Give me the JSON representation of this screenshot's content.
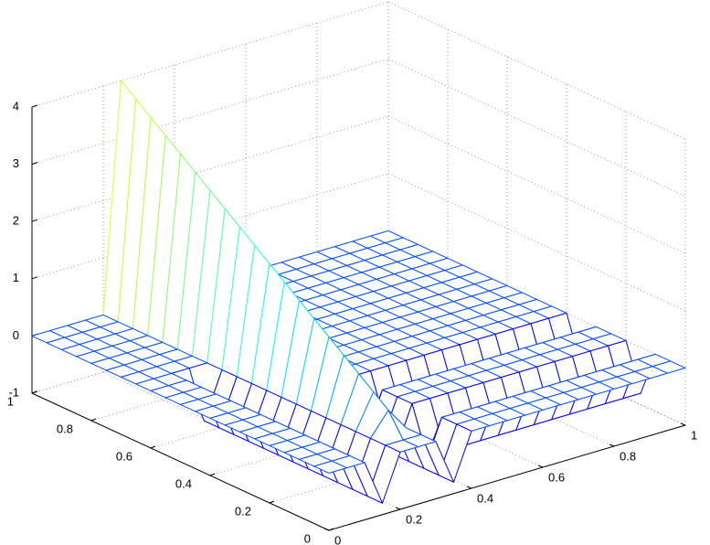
{
  "chart_data": {
    "type": "mesh",
    "x": [
      0,
      0.05,
      0.1,
      0.15,
      0.2,
      0.25,
      0.3,
      0.35,
      0.4,
      0.45,
      0.5,
      0.55,
      0.6,
      0.65,
      0.7,
      0.75,
      0.8,
      0.85,
      0.9,
      0.95,
      1
    ],
    "y": [
      0,
      0.05,
      0.1,
      0.15,
      0.2,
      0.25,
      0.3,
      0.35,
      0.4,
      0.45,
      0.5,
      0.55,
      0.6,
      0.65,
      0.7,
      0.75,
      0.8,
      0.85,
      0.9,
      0.95,
      1
    ],
    "z": [
      [
        0,
        0,
        0,
        -0.8,
        0,
        0,
        0,
        -0.8,
        0,
        0,
        0,
        0,
        0,
        0,
        0,
        0,
        0,
        0,
        0,
        0,
        0
      ],
      [
        0,
        0,
        0,
        -0.8,
        0,
        0,
        0,
        -0.8,
        0,
        0,
        0,
        0,
        0,
        0,
        0,
        0,
        0,
        0,
        0,
        0,
        0
      ],
      [
        0,
        0,
        0,
        -0.8,
        0,
        0.4,
        0,
        -0.8,
        0,
        0,
        0,
        0,
        0,
        0,
        0,
        0,
        0,
        0,
        0,
        0,
        0
      ],
      [
        0,
        0,
        0,
        -0.8,
        0,
        0.6,
        0,
        -0.8,
        -0.8,
        -0.8,
        -0.8,
        -0.8,
        -0.8,
        -0.8,
        -0.8,
        -0.8,
        -0.8,
        -0.8,
        -0.8,
        -0.8,
        -0.8
      ],
      [
        0,
        0,
        0,
        -0.8,
        0,
        0.8,
        0,
        -0.8,
        0,
        0,
        0,
        0,
        0,
        0,
        0,
        0,
        0,
        0,
        0,
        0,
        0
      ],
      [
        0,
        0,
        0,
        -0.8,
        0,
        1,
        0,
        -0.8,
        0,
        0,
        0,
        0,
        0,
        0,
        0,
        0,
        0,
        0,
        0,
        0,
        0
      ],
      [
        0,
        0,
        0,
        -0.8,
        0,
        1.2,
        0,
        -0.8,
        0,
        0,
        0,
        0,
        0,
        0,
        0,
        0,
        0,
        0,
        0,
        0,
        0
      ],
      [
        0,
        0,
        0,
        -0.8,
        0,
        1.4,
        0,
        -0.8,
        -0.8,
        -0.8,
        -0.8,
        -0.8,
        -0.8,
        -0.8,
        -0.8,
        -0.8,
        -0.8,
        -0.8,
        -0.8,
        -0.8,
        -0.8
      ],
      [
        0,
        0,
        0,
        -0.8,
        0,
        1.6,
        0,
        -0.8,
        0,
        0,
        0,
        0,
        0,
        0,
        0,
        0,
        0,
        0,
        0,
        0,
        0
      ],
      [
        0,
        0,
        0,
        -0.8,
        0,
        1.8,
        0,
        -0.8,
        0,
        0,
        0,
        0,
        0,
        0,
        0,
        0,
        0,
        0,
        0,
        0,
        0
      ],
      [
        0,
        0,
        0,
        -0.8,
        0,
        2,
        0,
        -0.8,
        0,
        0,
        0,
        0,
        0,
        0,
        0,
        0,
        0,
        0,
        0,
        0,
        0
      ],
      [
        0,
        0,
        0,
        -0.8,
        0,
        2.2,
        0,
        -0.8,
        0,
        0,
        0,
        0,
        0,
        0,
        0,
        0,
        0,
        0,
        0,
        0,
        0
      ],
      [
        0,
        0,
        0,
        -0.8,
        0,
        2.4,
        0,
        -0.8,
        0,
        0,
        0,
        0,
        0,
        0,
        0,
        0,
        0,
        0,
        0,
        0,
        0
      ],
      [
        0,
        0,
        0,
        0,
        0,
        2.6,
        0,
        0,
        0,
        0,
        0,
        0,
        0,
        0,
        0,
        0,
        0,
        0,
        0,
        0,
        0
      ],
      [
        0,
        0,
        0,
        0,
        0,
        2.8,
        0,
        0,
        0,
        0,
        0,
        0,
        0,
        0,
        0,
        0,
        0,
        0,
        0,
        0,
        0
      ],
      [
        0,
        0,
        0,
        0,
        0,
        3,
        0,
        0,
        0,
        0,
        0,
        0,
        0,
        0,
        0,
        0,
        0,
        0,
        0,
        0,
        0
      ],
      [
        0,
        0,
        0,
        0,
        0,
        3.2,
        0,
        0,
        0,
        0,
        0,
        0,
        0,
        0,
        0,
        0,
        0,
        0,
        0,
        0,
        0
      ],
      [
        0,
        0,
        0,
        0,
        0,
        3.4,
        0,
        0,
        0,
        0,
        0,
        0,
        0,
        0,
        0,
        0,
        0,
        0,
        0,
        0,
        0
      ],
      [
        0,
        0,
        0,
        0,
        0,
        3.6,
        0,
        0,
        0,
        0,
        0,
        0,
        0,
        0,
        0,
        0,
        0,
        0,
        0,
        0,
        0
      ],
      [
        0,
        0,
        0,
        0,
        0,
        3.8,
        0,
        0,
        0,
        0,
        0,
        0,
        0,
        0,
        0,
        0,
        0,
        0,
        0,
        0,
        0
      ],
      [
        0,
        0,
        0,
        0,
        0,
        4,
        0,
        0,
        0,
        0,
        0,
        0,
        0,
        0,
        0,
        0,
        0,
        0,
        0,
        0,
        0
      ]
    ],
    "xlim": [
      0,
      1
    ],
    "ylim": [
      0,
      1
    ],
    "zlim": [
      -1,
      4
    ],
    "xticks": [
      0,
      0.2,
      0.4,
      0.6,
      0.8,
      1
    ],
    "yticks": [
      0,
      0.2,
      0.4,
      0.6,
      0.8,
      1
    ],
    "zticks": [
      -1,
      0,
      1,
      2,
      3,
      4
    ],
    "grid": true,
    "colormap": "jet"
  }
}
